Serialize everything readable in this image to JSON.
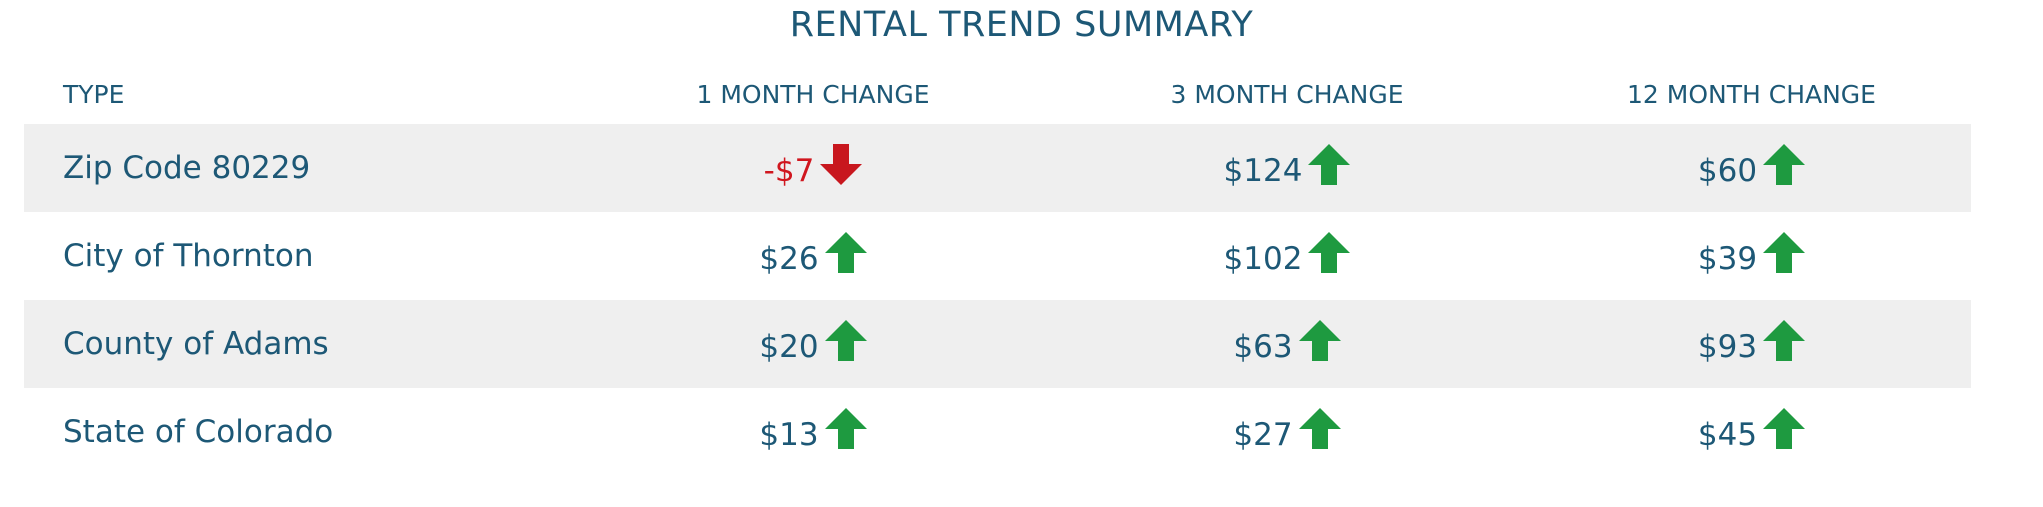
{
  "table": {
    "title": "RENTAL TREND SUMMARY",
    "headers": [
      "TYPE",
      "1 MONTH CHANGE",
      "3 MONTH CHANGE",
      "12 MONTH CHANGE"
    ],
    "rows": [
      [
        "Zip Code 80229",
        "-$7",
        "$124",
        "$60"
      ],
      [
        "City of Thornton",
        "$26",
        "$102",
        "$39"
      ],
      [
        "County of Adams",
        "$20",
        "$63",
        "$93"
      ],
      [
        "State of Colorado",
        "$13",
        "$27",
        "$45"
      ]
    ]
  }
}
